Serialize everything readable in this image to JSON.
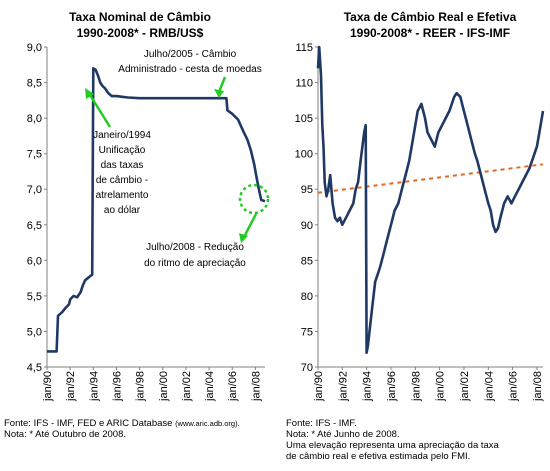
{
  "chart_data": [
    {
      "type": "line",
      "title": "Taxa Nominal de Câmbio",
      "subtitle": "1990-2008* - RMB/US$",
      "ylim": [
        4.5,
        9.0
      ],
      "yticks": [
        "9,0",
        "8,5",
        "8,0",
        "7,5",
        "7,0",
        "6,5",
        "6,0",
        "5,5",
        "5,0",
        "4,5"
      ],
      "xticks": [
        "jan/90",
        "jan/92",
        "jan/94",
        "jan/96",
        "jan/98",
        "jan/00",
        "jan/02",
        "jan/04",
        "jan/06",
        "jan/08"
      ],
      "xlim": [
        1990.0,
        2008.83
      ],
      "grid": false,
      "line_color": "#1f3864",
      "series": [
        {
          "points": [
            [
              1990.0,
              4.72
            ],
            [
              1990.83,
              4.72
            ],
            [
              1990.95,
              5.22
            ],
            [
              1991.3,
              5.27
            ],
            [
              1991.6,
              5.33
            ],
            [
              1991.9,
              5.38
            ],
            [
              1992.0,
              5.45
            ],
            [
              1992.3,
              5.5
            ],
            [
              1992.6,
              5.48
            ],
            [
              1992.9,
              5.55
            ],
            [
              1993.1,
              5.65
            ],
            [
              1993.3,
              5.72
            ],
            [
              1993.6,
              5.76
            ],
            [
              1993.9,
              5.8
            ],
            [
              1994.0,
              8.7
            ],
            [
              1994.2,
              8.68
            ],
            [
              1994.4,
              8.6
            ],
            [
              1994.6,
              8.5
            ],
            [
              1994.8,
              8.45
            ],
            [
              1995.0,
              8.42
            ],
            [
              1995.3,
              8.35
            ],
            [
              1995.6,
              8.31
            ],
            [
              1996.0,
              8.31
            ],
            [
              1996.5,
              8.3
            ],
            [
              1997.0,
              8.29
            ],
            [
              1998.0,
              8.28
            ],
            [
              2000.0,
              8.28
            ],
            [
              2002.0,
              8.28
            ],
            [
              2004.0,
              8.28
            ],
            [
              2005.5,
              8.28
            ],
            [
              2005.58,
              8.11
            ],
            [
              2006.0,
              8.06
            ],
            [
              2006.5,
              7.98
            ],
            [
              2007.0,
              7.8
            ],
            [
              2007.3,
              7.7
            ],
            [
              2007.6,
              7.55
            ],
            [
              2007.9,
              7.35
            ],
            [
              2008.1,
              7.17
            ],
            [
              2008.3,
              7.0
            ],
            [
              2008.5,
              6.85
            ],
            [
              2008.83,
              6.83
            ]
          ]
        }
      ],
      "annotations": [
        {
          "lines": [
            "Julho/2005 - Câmbio",
            "Administrado - cesta de moedas"
          ]
        },
        {
          "lines": [
            "Janeiro/1994",
            "Unificação",
            "das taxas",
            "de câmbio -",
            "atrelamento",
            "ao dólar"
          ]
        },
        {
          "lines": [
            "Julho/2008 - Redução",
            "do ritmo de apreciação"
          ]
        }
      ]
    },
    {
      "type": "line",
      "title": "Taxa de Câmbio Real e Efetiva",
      "subtitle": "1990-2008* - REER - IFS-IMF",
      "ylim": [
        70,
        115
      ],
      "yticks": [
        "115",
        "110",
        "105",
        "100",
        "95",
        "90",
        "85",
        "80",
        "75",
        "70"
      ],
      "xticks": [
        "jan/90",
        "jan/92",
        "jan/94",
        "jan/96",
        "jan/98",
        "jan/00",
        "jan/02",
        "jan/04",
        "jan/06",
        "jan/08"
      ],
      "xlim": [
        1990.0,
        2008.5
      ],
      "grid": false,
      "line_color": "#1f3864",
      "trend_color": "#e06820",
      "trend": [
        [
          1990.0,
          94.5
        ],
        [
          2008.5,
          98.5
        ]
      ],
      "series": [
        {
          "points": [
            [
              1990.0,
              112
            ],
            [
              1990.1,
              115
            ],
            [
              1990.25,
              111
            ],
            [
              1990.35,
              104
            ],
            [
              1990.45,
              101
            ],
            [
              1990.55,
              96
            ],
            [
              1990.7,
              94
            ],
            [
              1990.85,
              95
            ],
            [
              1991.0,
              97
            ],
            [
              1991.2,
              93
            ],
            [
              1991.4,
              91
            ],
            [
              1991.6,
              90.5
            ],
            [
              1991.8,
              91
            ],
            [
              1992.0,
              90
            ],
            [
              1992.3,
              91
            ],
            [
              1992.6,
              92
            ],
            [
              1992.9,
              93
            ],
            [
              1993.1,
              95
            ],
            [
              1993.3,
              96
            ],
            [
              1993.5,
              99
            ],
            [
              1993.65,
              101
            ],
            [
              1993.8,
              103
            ],
            [
              1993.92,
              104
            ],
            [
              1994.0,
              72
            ],
            [
              1994.1,
              73
            ],
            [
              1994.3,
              76
            ],
            [
              1994.5,
              79
            ],
            [
              1994.7,
              82
            ],
            [
              1994.9,
              83
            ],
            [
              1995.1,
              84
            ],
            [
              1995.4,
              86
            ],
            [
              1995.7,
              88
            ],
            [
              1996.0,
              90
            ],
            [
              1996.3,
              92
            ],
            [
              1996.6,
              93
            ],
            [
              1996.9,
              95
            ],
            [
              1997.2,
              97
            ],
            [
              1997.5,
              99
            ],
            [
              1997.8,
              102
            ],
            [
              1998.0,
              104
            ],
            [
              1998.2,
              106
            ],
            [
              1998.5,
              107
            ],
            [
              1998.8,
              105
            ],
            [
              1999.0,
              103
            ],
            [
              1999.3,
              102
            ],
            [
              1999.6,
              101
            ],
            [
              1999.9,
              103
            ],
            [
              2000.2,
              104
            ],
            [
              2000.5,
              105
            ],
            [
              2000.8,
              106
            ],
            [
              2001.0,
              107
            ],
            [
              2001.2,
              108
            ],
            [
              2001.4,
              108.5
            ],
            [
              2001.7,
              108
            ],
            [
              2002.0,
              106
            ],
            [
              2002.3,
              104
            ],
            [
              2002.6,
              102
            ],
            [
              2002.9,
              100
            ],
            [
              2003.1,
              99
            ],
            [
              2003.4,
              97
            ],
            [
              2003.7,
              95
            ],
            [
              2004.0,
              93
            ],
            [
              2004.2,
              92
            ],
            [
              2004.4,
              90
            ],
            [
              2004.6,
              89
            ],
            [
              2004.8,
              89.5
            ],
            [
              2005.0,
              91
            ],
            [
              2005.3,
              93
            ],
            [
              2005.6,
              94
            ],
            [
              2005.9,
              93
            ],
            [
              2006.2,
              94
            ],
            [
              2006.5,
              95
            ],
            [
              2006.8,
              96
            ],
            [
              2007.1,
              97
            ],
            [
              2007.4,
              98
            ],
            [
              2007.7,
              99.5
            ],
            [
              2008.0,
              101
            ],
            [
              2008.2,
              103
            ],
            [
              2008.4,
              105
            ],
            [
              2008.5,
              106
            ]
          ]
        }
      ]
    }
  ],
  "footer": {
    "left": {
      "source_prefix": "Fonte: IFS - IMF, FED e ARIC Database",
      "source_url": "(www.aric.adb.org).",
      "note": "Nota: * Até Outubro de 2008."
    },
    "right": {
      "source": "Fonte: IFS - IMF.",
      "note": "Nota: * Até Junho de 2008.",
      "desc_line1": "Uma elevação representa uma apreciação da taxa",
      "desc_line2": "de câmbio real e efetiva estimada pelo FMI."
    }
  }
}
